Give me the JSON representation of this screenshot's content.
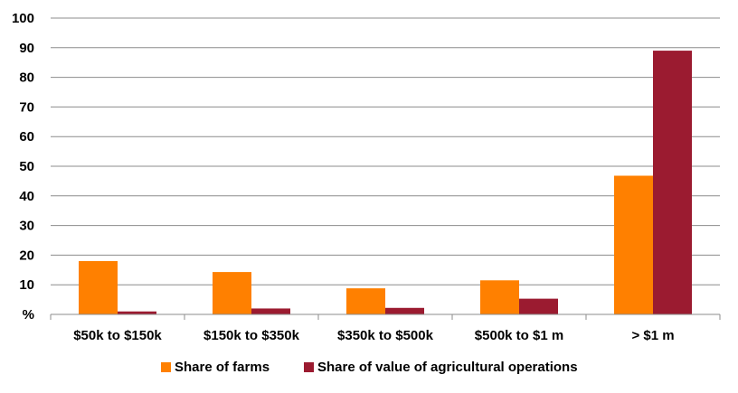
{
  "chart_data": {
    "type": "bar",
    "categories": [
      "$50k to $150k",
      "$150k to $350k",
      "$350k to $500k",
      "$500k to $1 m",
      "> $1 m"
    ],
    "series": [
      {
        "name": "Share of farms",
        "values": [
          18,
          14.3,
          8.8,
          11.5,
          46.8
        ],
        "color": "#ff8000"
      },
      {
        "name": "Share of value of agricultural operations",
        "values": [
          1,
          2,
          2.2,
          5.3,
          89
        ],
        "color": "#9b1b30"
      }
    ],
    "ylim": [
      0,
      100
    ],
    "yticks": [
      "%",
      "10",
      "20",
      "30",
      "40",
      "50",
      "60",
      "70",
      "80",
      "90",
      "100"
    ],
    "grid": true,
    "legend_position": "bottom"
  }
}
